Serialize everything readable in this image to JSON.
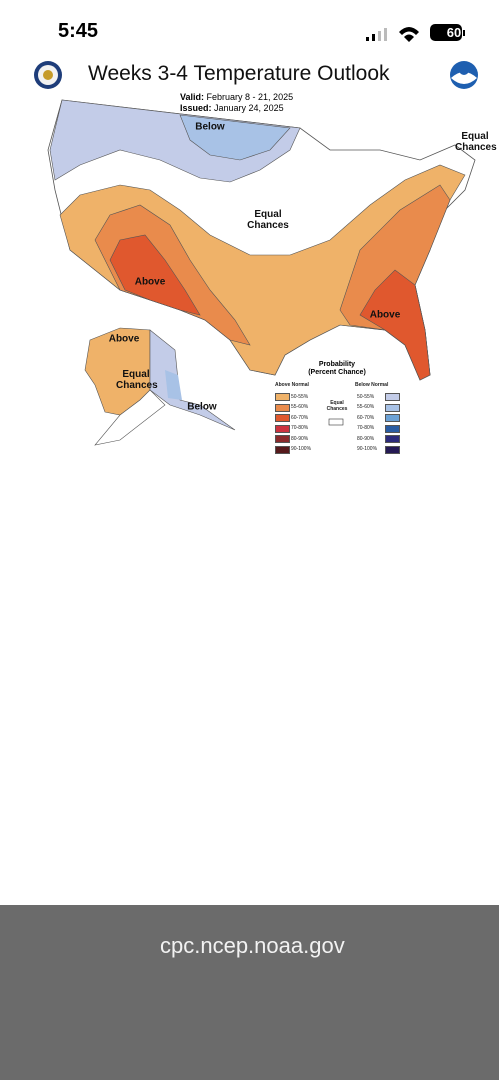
{
  "status_bar": {
    "time": "5:45",
    "battery": "60"
  },
  "map": {
    "title": "Weeks 3-4 Temperature Outlook",
    "valid_label": "Valid:",
    "valid": "February 8 - 21, 2025",
    "issued_label": "Issued:",
    "issued": "January 24, 2025",
    "regions": [
      {
        "label": "Below"
      },
      {
        "label": "Equal Chances"
      },
      {
        "label": "Equal Chances"
      },
      {
        "label": "Above"
      },
      {
        "label": "Above"
      },
      {
        "label": "Above"
      },
      {
        "label": "Equal Chances"
      },
      {
        "label": "Below"
      }
    ],
    "legend": {
      "title": "Probability",
      "subtitle": "(Percent Chance)",
      "above_header": "Above Normal",
      "below_header": "Below Normal",
      "equal": "Equal Chances",
      "rows": [
        {
          "above": "50-55%",
          "above_color": "#efb269",
          "below": "50-55%",
          "below_color": "#c3cce8"
        },
        {
          "above": "55-60%",
          "above_color": "#e98b4c",
          "below": "55-60%",
          "below_color": "#a8c2e6"
        },
        {
          "above": "60-70%",
          "above_color": "#e0582e",
          "below": "60-70%",
          "below_color": "#6ca2d6"
        },
        {
          "above": "70-80%",
          "above_color": "#cc3340",
          "below": "70-80%",
          "below_color": "#2a5ca2"
        },
        {
          "above": "80-90%",
          "above_color": "#8a2a2c",
          "below": "80-90%",
          "below_color": "#2c2a7a"
        },
        {
          "above": "90-100%",
          "above_color": "#561a1c",
          "below": "90-100%",
          "below_color": "#251a54"
        }
      ]
    }
  },
  "browser": {
    "url": "cpc.ncep.noaa.gov"
  }
}
